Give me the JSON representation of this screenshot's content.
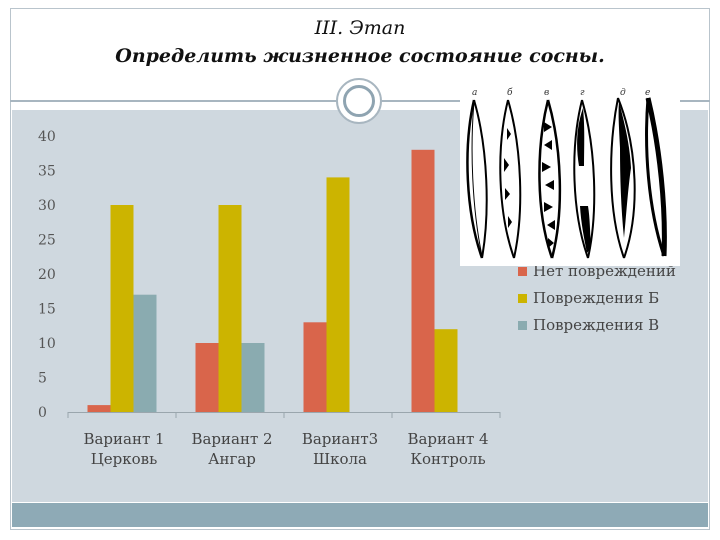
{
  "slide": {
    "title_line1": "III.  Этап",
    "title_line2": "Определить жизненное состояние сосны."
  },
  "figure": {
    "letters": [
      "а",
      "б",
      "в",
      "г",
      "д",
      "е"
    ]
  },
  "colors": {
    "background": "#cfd8df",
    "series": [
      "#d9654b",
      "#ccb400",
      "#8aabb0"
    ]
  },
  "chart_data": {
    "type": "bar",
    "categories": [
      [
        "Вариант 1",
        "Церковь"
      ],
      [
        "Вариант 2",
        "Ангар"
      ],
      [
        "Вариант3",
        "Школа"
      ],
      [
        "Вариант 4",
        "Контроль"
      ]
    ],
    "series": [
      {
        "name": "Нет повреждений",
        "values": [
          1,
          10,
          13,
          38
        ]
      },
      {
        "name": "Повреждения Б",
        "values": [
          30,
          30,
          34,
          12
        ]
      },
      {
        "name": "Повреждения В",
        "values": [
          17,
          10,
          0,
          0
        ]
      }
    ],
    "ylim": [
      0,
      40
    ],
    "yticks": [
      "0",
      "5",
      "10",
      "15",
      "20",
      "25",
      "30",
      "35",
      "40"
    ],
    "legend_position": "right",
    "grid": false
  }
}
